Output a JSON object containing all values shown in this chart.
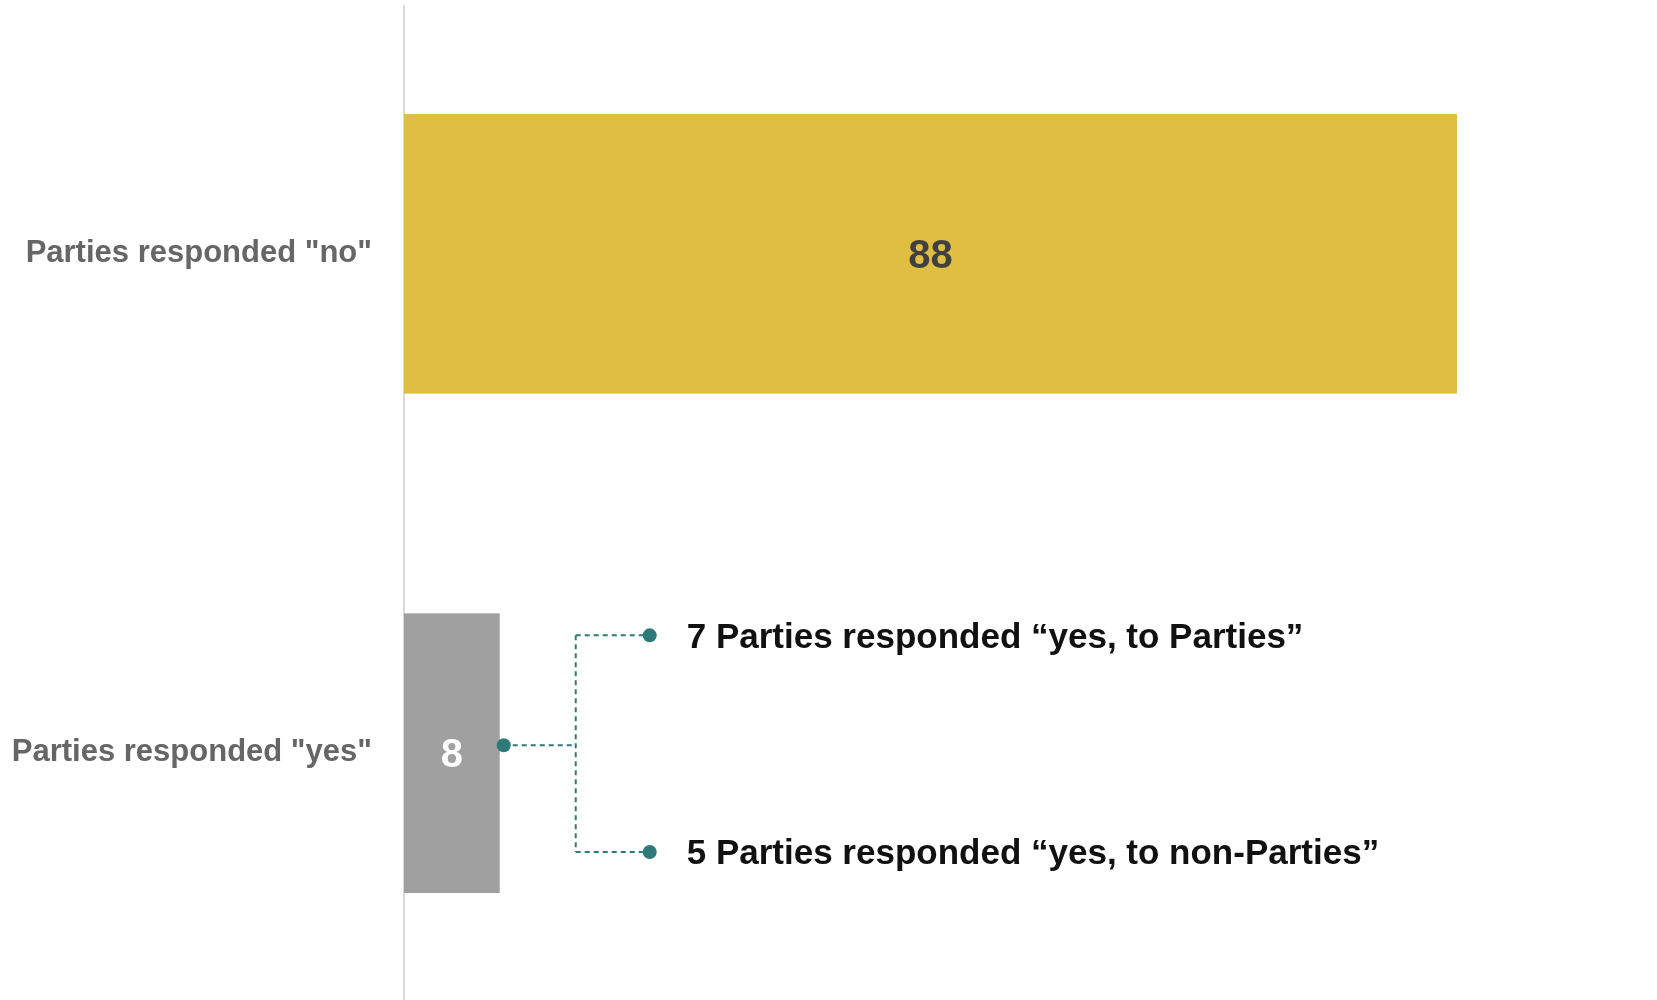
{
  "chart_data": {
    "type": "bar",
    "orientation": "horizontal",
    "categories": [
      "Parties responded \"no\"",
      "Parties responded \"yes\""
    ],
    "values": [
      88,
      8
    ],
    "colors": [
      "#e0be41",
      "#a0a0a0"
    ],
    "data_labels": true,
    "tick_labels": "y",
    "annotations": [
      "7 Parties responded “yes, to Parties”",
      "5 Parties responded “yes, to non-Parties”"
    ]
  }
}
